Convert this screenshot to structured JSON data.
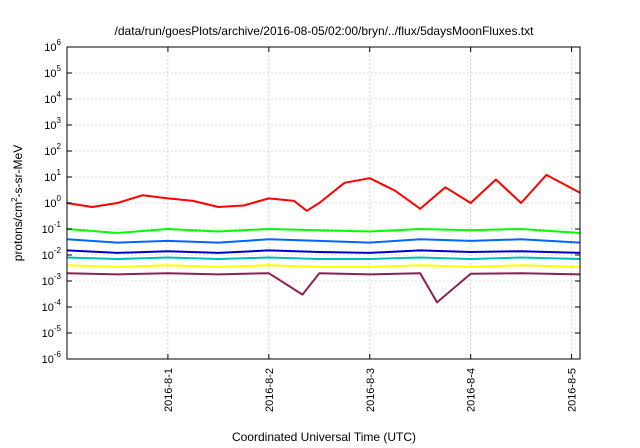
{
  "chart_data": {
    "type": "line",
    "title": "/data/run/goesPlots/archive/2016-08-05/02:00/bryn/../flux/5daysMoonFluxes.txt",
    "xlabel": "Coordinated Universal Time (UTC)",
    "ylabel": "protons/cm²-s-sr-MeV",
    "ylabel_parts": [
      "protons/cm",
      "2",
      "-s-sr-MeV"
    ],
    "yscale": "log",
    "ylim": [
      1e-06,
      1000000.0
    ],
    "xlim": [
      "2016-07-31 00:00",
      "2016-08-05 02:00"
    ],
    "grid": true,
    "legend": "none",
    "x_ticks": [
      {
        "x": "2016-08-01 00:00",
        "label": "2016-8-1"
      },
      {
        "x": "2016-08-02 00:00",
        "label": "2016-8-2"
      },
      {
        "x": "2016-08-03 00:00",
        "label": "2016-8-3"
      },
      {
        "x": "2016-08-04 00:00",
        "label": "2016-8-4"
      },
      {
        "x": "2016-08-05 00:00",
        "label": "2016-8-5"
      }
    ],
    "y_ticks": [
      {
        "y": 1e-06,
        "base": "10",
        "exp": "-6"
      },
      {
        "y": 1e-05,
        "base": "10",
        "exp": "-5"
      },
      {
        "y": 0.0001,
        "base": "10",
        "exp": "-4"
      },
      {
        "y": 0.001,
        "base": "10",
        "exp": "-3"
      },
      {
        "y": 0.01,
        "base": "10",
        "exp": "-2"
      },
      {
        "y": 0.1,
        "base": "10",
        "exp": "-1"
      },
      {
        "y": 1,
        "base": "10",
        "exp": "0"
      },
      {
        "y": 10,
        "base": "10",
        "exp": "1"
      },
      {
        "y": 100,
        "base": "10",
        "exp": "2"
      },
      {
        "y": 1000,
        "base": "10",
        "exp": "3"
      },
      {
        "y": 10000,
        "base": "10",
        "exp": "4"
      },
      {
        "y": 100000,
        "base": "10",
        "exp": "5"
      },
      {
        "y": 1000000,
        "base": "10",
        "exp": "6"
      }
    ],
    "series": [
      {
        "color": "#ff0000",
        "x": [
          "2016-07-31 00:00",
          "2016-07-31 06:00",
          "2016-07-31 12:00",
          "2016-07-31 18:00",
          "2016-08-01 00:00",
          "2016-08-01 06:00",
          "2016-08-01 12:00",
          "2016-08-01 18:00",
          "2016-08-02 00:00",
          "2016-08-02 06:00",
          "2016-08-02 09:00",
          "2016-08-02 12:00",
          "2016-08-02 18:00",
          "2016-08-03 00:00",
          "2016-08-03 06:00",
          "2016-08-03 12:00",
          "2016-08-03 18:00",
          "2016-08-04 00:00",
          "2016-08-04 06:00",
          "2016-08-04 12:00",
          "2016-08-04 18:00",
          "2016-08-05 02:00"
        ],
        "y": [
          1.0,
          0.7,
          1.0,
          2.0,
          1.5,
          1.2,
          0.7,
          0.8,
          1.5,
          1.2,
          0.5,
          1.0,
          6.0,
          9.0,
          3.0,
          0.6,
          4.0,
          1.0,
          8.0,
          1.0,
          12.0,
          2.5
        ]
      },
      {
        "color": "#00ff00",
        "x": [
          "2016-07-31 00:00",
          "2016-07-31 12:00",
          "2016-08-01 00:00",
          "2016-08-01 12:00",
          "2016-08-02 00:00",
          "2016-08-02 12:00",
          "2016-08-03 00:00",
          "2016-08-03 12:00",
          "2016-08-04 00:00",
          "2016-08-04 12:00",
          "2016-08-05 02:00"
        ],
        "y": [
          0.1,
          0.07,
          0.1,
          0.08,
          0.1,
          0.09,
          0.08,
          0.1,
          0.09,
          0.1,
          0.07
        ]
      },
      {
        "color": "#0066ff",
        "x": [
          "2016-07-31 00:00",
          "2016-07-31 12:00",
          "2016-08-01 00:00",
          "2016-08-01 12:00",
          "2016-08-02 00:00",
          "2016-08-02 12:00",
          "2016-08-03 00:00",
          "2016-08-03 12:00",
          "2016-08-04 00:00",
          "2016-08-04 12:00",
          "2016-08-05 02:00"
        ],
        "y": [
          0.04,
          0.03,
          0.035,
          0.03,
          0.04,
          0.035,
          0.03,
          0.04,
          0.035,
          0.04,
          0.03
        ]
      },
      {
        "color": "#0000cc",
        "x": [
          "2016-07-31 00:00",
          "2016-07-31 12:00",
          "2016-08-01 00:00",
          "2016-08-01 12:00",
          "2016-08-02 00:00",
          "2016-08-02 12:00",
          "2016-08-03 00:00",
          "2016-08-03 12:00",
          "2016-08-04 00:00",
          "2016-08-04 12:00",
          "2016-08-05 02:00"
        ],
        "y": [
          0.015,
          0.012,
          0.014,
          0.012,
          0.015,
          0.013,
          0.012,
          0.015,
          0.013,
          0.014,
          0.012
        ]
      },
      {
        "color": "#00bbbb",
        "x": [
          "2016-07-31 00:00",
          "2016-07-31 12:00",
          "2016-08-01 00:00",
          "2016-08-01 12:00",
          "2016-08-02 00:00",
          "2016-08-02 12:00",
          "2016-08-03 00:00",
          "2016-08-03 12:00",
          "2016-08-04 00:00",
          "2016-08-04 12:00",
          "2016-08-05 02:00"
        ],
        "y": [
          0.008,
          0.007,
          0.008,
          0.007,
          0.008,
          0.007,
          0.007,
          0.008,
          0.007,
          0.008,
          0.007
        ]
      },
      {
        "color": "#ffff00",
        "x": [
          "2016-07-31 00:00",
          "2016-07-31 12:00",
          "2016-08-01 00:00",
          "2016-08-01 12:00",
          "2016-08-02 00:00",
          "2016-08-02 12:00",
          "2016-08-03 00:00",
          "2016-08-03 12:00",
          "2016-08-04 00:00",
          "2016-08-04 12:00",
          "2016-08-05 02:00"
        ],
        "y": [
          0.004,
          0.0035,
          0.004,
          0.0035,
          0.004,
          0.0035,
          0.0035,
          0.004,
          0.0035,
          0.004,
          0.0035
        ]
      },
      {
        "color": "#8b2252",
        "x": [
          "2016-07-31 00:00",
          "2016-07-31 12:00",
          "2016-08-01 00:00",
          "2016-08-01 12:00",
          "2016-08-02 00:00",
          "2016-08-02 08:00",
          "2016-08-02 12:00",
          "2016-08-03 00:00",
          "2016-08-03 12:00",
          "2016-08-03 16:00",
          "2016-08-04 00:00",
          "2016-08-04 12:00",
          "2016-08-05 02:00"
        ],
        "y": [
          0.002,
          0.0018,
          0.002,
          0.0018,
          0.002,
          0.0003,
          0.002,
          0.0018,
          0.002,
          0.00015,
          0.0019,
          0.002,
          0.0018
        ]
      }
    ]
  }
}
